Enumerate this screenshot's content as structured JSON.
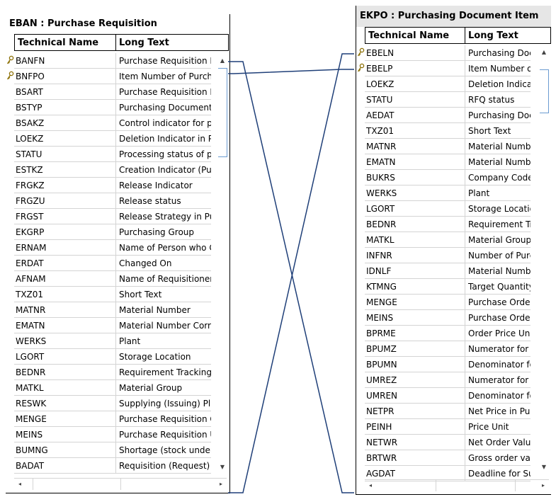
{
  "left_table": {
    "title": "EBAN : Purchase Requisition",
    "col_technical": "Technical Name",
    "col_long": "Long Text",
    "rows": [
      {
        "tech": "BANFN",
        "long": "Purchase Requisition N",
        "key": true
      },
      {
        "tech": "BNFPO",
        "long": "Item Number of Purcha",
        "key": true
      },
      {
        "tech": "BSART",
        "long": "Purchase Requisition D"
      },
      {
        "tech": "BSTYP",
        "long": "Purchasing Document C"
      },
      {
        "tech": "BSAKZ",
        "long": "Control indicator for pu"
      },
      {
        "tech": "LOEKZ",
        "long": "Deletion Indicator in Pu"
      },
      {
        "tech": "STATU",
        "long": "Processing status of pu"
      },
      {
        "tech": "ESTKZ",
        "long": "Creation Indicator (Pur"
      },
      {
        "tech": "FRGKZ",
        "long": "Release Indicator"
      },
      {
        "tech": "FRGZU",
        "long": "Release status"
      },
      {
        "tech": "FRGST",
        "long": "Release Strategy in Pur"
      },
      {
        "tech": "EKGRP",
        "long": "Purchasing Group"
      },
      {
        "tech": "ERNAM",
        "long": "Name of Person who C"
      },
      {
        "tech": "ERDAT",
        "long": "Changed On"
      },
      {
        "tech": "AFNAM",
        "long": "Name of Requisitioner/"
      },
      {
        "tech": "TXZ01",
        "long": "Short Text"
      },
      {
        "tech": "MATNR",
        "long": "Material Number"
      },
      {
        "tech": "EMATN",
        "long": "Material Number Corre"
      },
      {
        "tech": "WERKS",
        "long": "Plant"
      },
      {
        "tech": "LGORT",
        "long": "Storage Location"
      },
      {
        "tech": "BEDNR",
        "long": "Requirement Tracking N"
      },
      {
        "tech": "MATKL",
        "long": "Material Group"
      },
      {
        "tech": "RESWK",
        "long": "Supplying (Issuing) Pla"
      },
      {
        "tech": "MENGE",
        "long": "Purchase Requisition Q"
      },
      {
        "tech": "MEINS",
        "long": "Purchase Requisition U"
      },
      {
        "tech": "BUMNG",
        "long": "Shortage (stock under"
      },
      {
        "tech": "BADAT",
        "long": "Requisition (Request) D"
      }
    ]
  },
  "right_table": {
    "title": "EKPO : Purchasing Document Item",
    "col_technical": "Technical Name",
    "col_long": "Long Text",
    "rows": [
      {
        "tech": "EBELN",
        "long": "Purchasing Doc",
        "key": true
      },
      {
        "tech": "EBELP",
        "long": "Item Number of",
        "key": true
      },
      {
        "tech": "LOEKZ",
        "long": "Deletion Indicat"
      },
      {
        "tech": "STATU",
        "long": "RFQ status"
      },
      {
        "tech": "AEDAT",
        "long": "Purchasing Doc"
      },
      {
        "tech": "TXZ01",
        "long": "Short Text"
      },
      {
        "tech": "MATNR",
        "long": "Material Numbe"
      },
      {
        "tech": "EMATN",
        "long": "Material Numbe"
      },
      {
        "tech": "BUKRS",
        "long": "Company Code"
      },
      {
        "tech": "WERKS",
        "long": "Plant"
      },
      {
        "tech": "LGORT",
        "long": "Storage Locatio"
      },
      {
        "tech": "BEDNR",
        "long": "Requirement Tr"
      },
      {
        "tech": "MATKL",
        "long": "Material Group"
      },
      {
        "tech": "INFNR",
        "long": "Number of Purc"
      },
      {
        "tech": "IDNLF",
        "long": "Material Numbe"
      },
      {
        "tech": "KTMNG",
        "long": "Target Quantity"
      },
      {
        "tech": "MENGE",
        "long": "Purchase Orde"
      },
      {
        "tech": "MEINS",
        "long": "Purchase Orde"
      },
      {
        "tech": "BPRME",
        "long": "Order Price Uni"
      },
      {
        "tech": "BPUMZ",
        "long": "Numerator for"
      },
      {
        "tech": "BPUMN",
        "long": "Denominator fo"
      },
      {
        "tech": "UMREZ",
        "long": "Numerator for"
      },
      {
        "tech": "UMREN",
        "long": "Denominator fo"
      },
      {
        "tech": "NETPR",
        "long": "Net Price in Pur"
      },
      {
        "tech": "PEINH",
        "long": "Price Unit"
      },
      {
        "tech": "NETWR",
        "long": "Net Order Value"
      },
      {
        "tech": "BRTWR",
        "long": "Gross order val"
      },
      {
        "tech": "AGDAT",
        "long": "Deadline for Su"
      }
    ]
  },
  "colors": {
    "connector": "#1f3f78",
    "scroll_thumb_border": "#6b9bd1",
    "title_bg_right": "#e6e6e6",
    "key_icon": "#8a6d00"
  },
  "icons": {
    "key": "key-icon",
    "scroll_up": "scroll-up-icon",
    "scroll_down": "scroll-down-icon",
    "scroll_left": "scroll-left-icon",
    "scroll_right": "scroll-right-icon"
  }
}
